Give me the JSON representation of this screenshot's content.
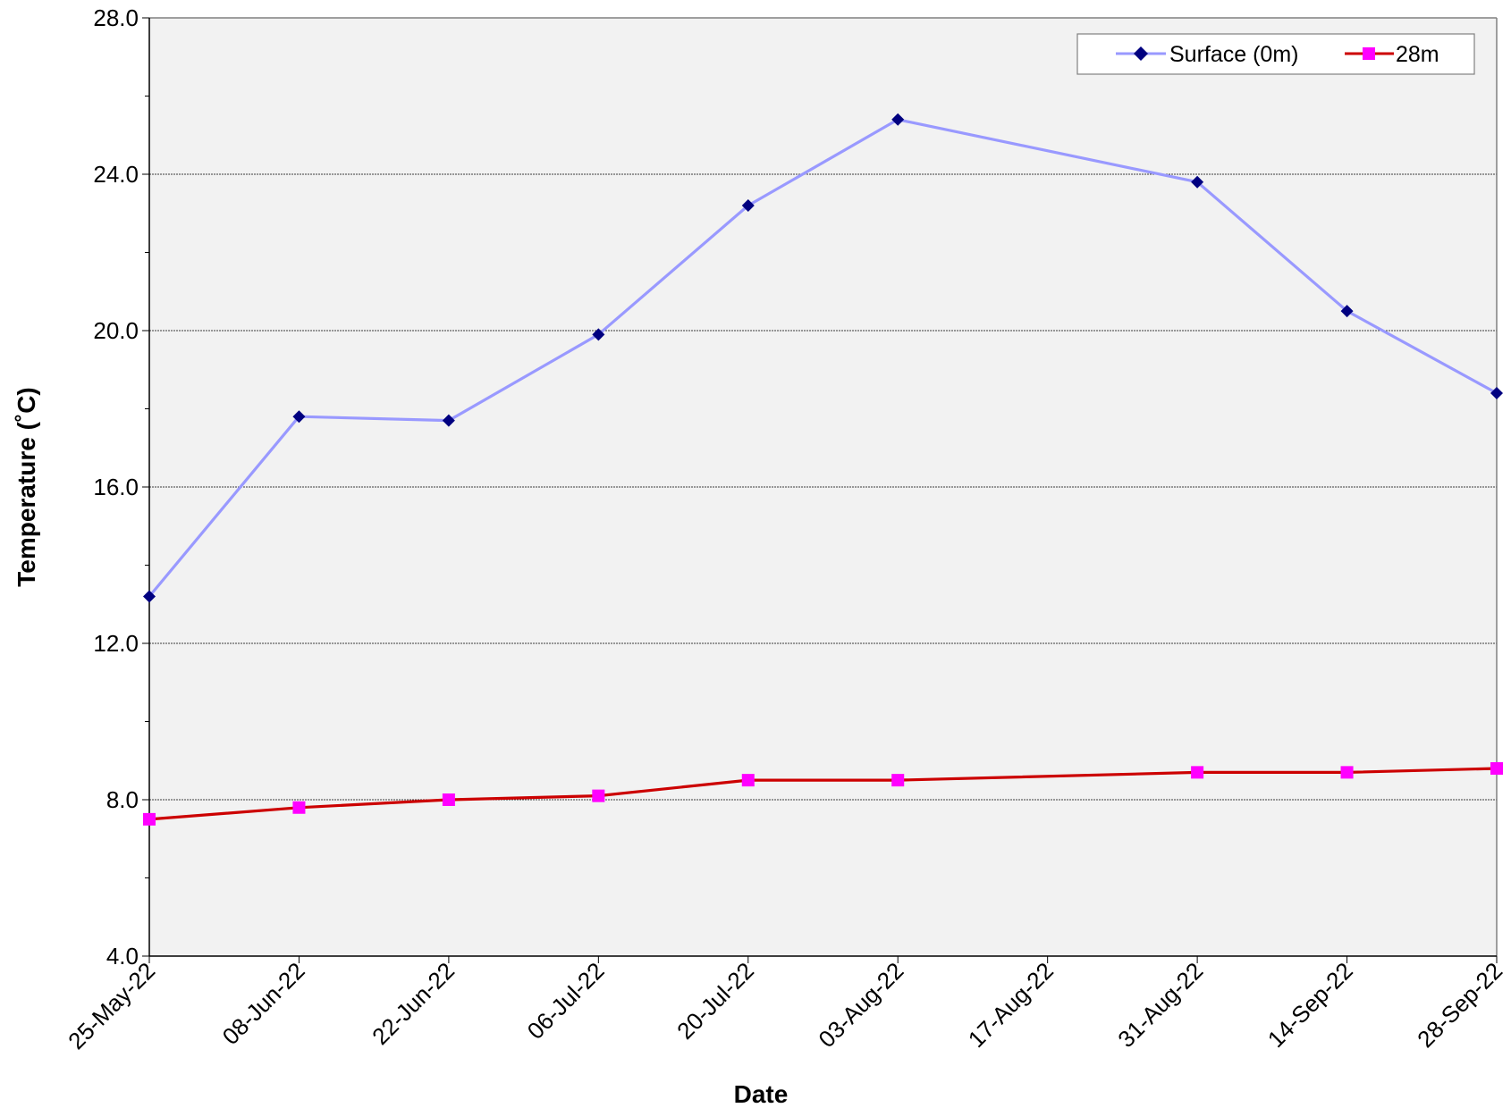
{
  "chart_data": {
    "type": "line",
    "title": "",
    "xlabel": "Date",
    "ylabel": "Temperature (˚C)",
    "ylim": [
      4.0,
      28.0
    ],
    "y_ticks": [
      "4.0",
      "8.0",
      "12.0",
      "16.0",
      "20.0",
      "24.0",
      "28.0"
    ],
    "x_ticks": [
      "25-May-22",
      "08-Jun-22",
      "22-Jun-22",
      "06-Jul-22",
      "20-Jul-22",
      "03-Aug-22",
      "17-Aug-22",
      "31-Aug-22",
      "14-Sep-22",
      "28-Sep-22"
    ],
    "xlim": [
      "25-May-22",
      "28-Sep-22"
    ],
    "grid": "horizontal major",
    "legend_position": "top-right",
    "series": [
      {
        "name": "Surface (0m)",
        "color": "#9999ff",
        "marker_color": "#000080",
        "marker": "diamond",
        "x": [
          "25-May-22",
          "08-Jun-22",
          "22-Jun-22",
          "06-Jul-22",
          "20-Jul-22",
          "03-Aug-22",
          "31-Aug-22",
          "14-Sep-22",
          "28-Sep-22"
        ],
        "values": [
          13.2,
          17.8,
          17.7,
          19.9,
          23.2,
          25.4,
          23.8,
          20.5,
          18.4
        ]
      },
      {
        "name": "28m",
        "color": "#cc0000",
        "marker_color": "#ff00ff",
        "marker": "square",
        "x": [
          "25-May-22",
          "08-Jun-22",
          "22-Jun-22",
          "06-Jul-22",
          "20-Jul-22",
          "03-Aug-22",
          "31-Aug-22",
          "14-Sep-22",
          "28-Sep-22"
        ],
        "values": [
          7.5,
          7.8,
          8.0,
          8.1,
          8.5,
          8.5,
          8.7,
          8.7,
          8.8
        ]
      }
    ]
  }
}
